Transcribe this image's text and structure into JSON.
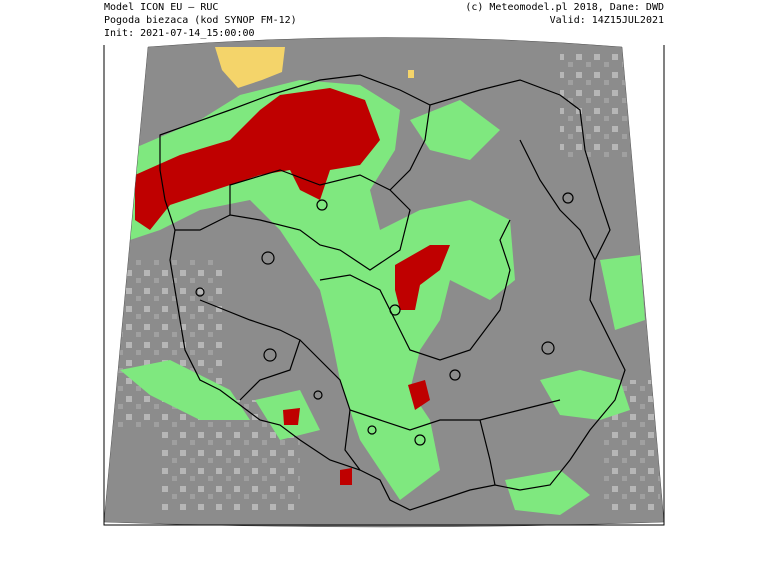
{
  "header": {
    "left": [
      "Model ICON EU — RUC",
      "Pogoda biezaca (kod SYNOP FM-12)",
      "Init: 2021-07-14_15:00:00"
    ],
    "right": [
      "(c) Meteomodel.pl 2018, Dane: DWD",
      "Valid: 14Z15JUL2021"
    ]
  }
}
